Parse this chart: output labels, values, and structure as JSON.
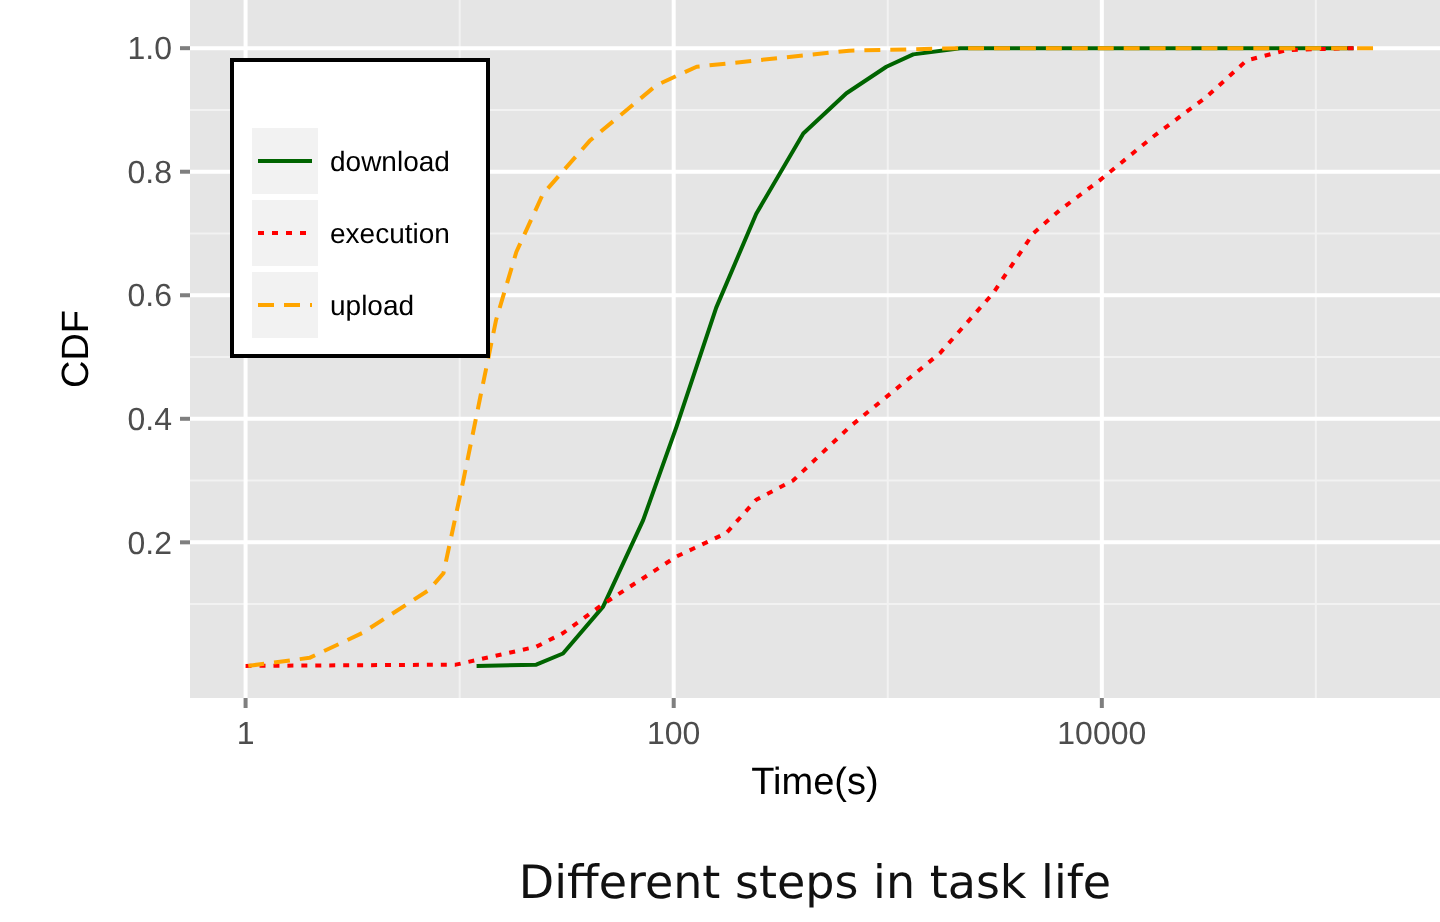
{
  "chart_data": {
    "type": "line",
    "title": "Different steps in task life",
    "xlabel": "Time(s)",
    "ylabel": "CDF",
    "log": "x",
    "grid": true,
    "legend": "top left",
    "xlim": [
      0.55,
      380000
    ],
    "ylim": [
      -0.052,
      1.078
    ],
    "xticks": [
      1,
      100,
      10000
    ],
    "yticks": [
      {
        "value": 0.2,
        "label": "0.2"
      },
      {
        "value": 0.4,
        "label": "0.4"
      },
      {
        "value": 0.6,
        "label": "0.6"
      },
      {
        "value": 0.8,
        "label": "0.8"
      },
      {
        "value": 1.0,
        "label": "1.0"
      }
    ],
    "series": [
      {
        "name": "download",
        "color": "#006400",
        "line_style": "solid",
        "x": [
          12,
          22.8,
          30.4,
          46.8,
          72,
          103,
          158,
          243,
          403,
          641,
          985,
          1315,
          2180,
          150000
        ],
        "values": [
          0,
          0.002,
          0.02,
          0.096,
          0.236,
          0.387,
          0.58,
          0.732,
          0.862,
          0.927,
          0.97,
          0.99,
          1.0,
          1.0
        ]
      },
      {
        "name": "execution",
        "color": "#ff0000",
        "line_style": "dotted",
        "x": [
          1,
          9.6,
          22.8,
          30.4,
          46.8,
          103,
          176,
          243,
          361,
          664,
          1750,
          3100,
          4780,
          6370,
          9770,
          17400,
          30800,
          47400,
          73000,
          150000
        ],
        "values": [
          0,
          0.002,
          0.031,
          0.053,
          0.1,
          0.177,
          0.215,
          0.269,
          0.3,
          0.387,
          0.506,
          0.603,
          0.7,
          0.738,
          0.786,
          0.857,
          0.921,
          0.98,
          0.997,
          1.0
        ]
      },
      {
        "name": "upload",
        "color": "#ffa500",
        "line_style": "dashed",
        "x": [
          1.03,
          1.99,
          3.5,
          7.2,
          8.4,
          10.4,
          12.4,
          14.8,
          18.4,
          24.5,
          40.5,
          83,
          128,
          660,
          2180,
          185000
        ],
        "values": [
          0,
          0.013,
          0.053,
          0.123,
          0.15,
          0.3,
          0.43,
          0.56,
          0.67,
          0.764,
          0.85,
          0.94,
          0.97,
          0.996,
          1.0,
          1.0
        ]
      }
    ]
  }
}
